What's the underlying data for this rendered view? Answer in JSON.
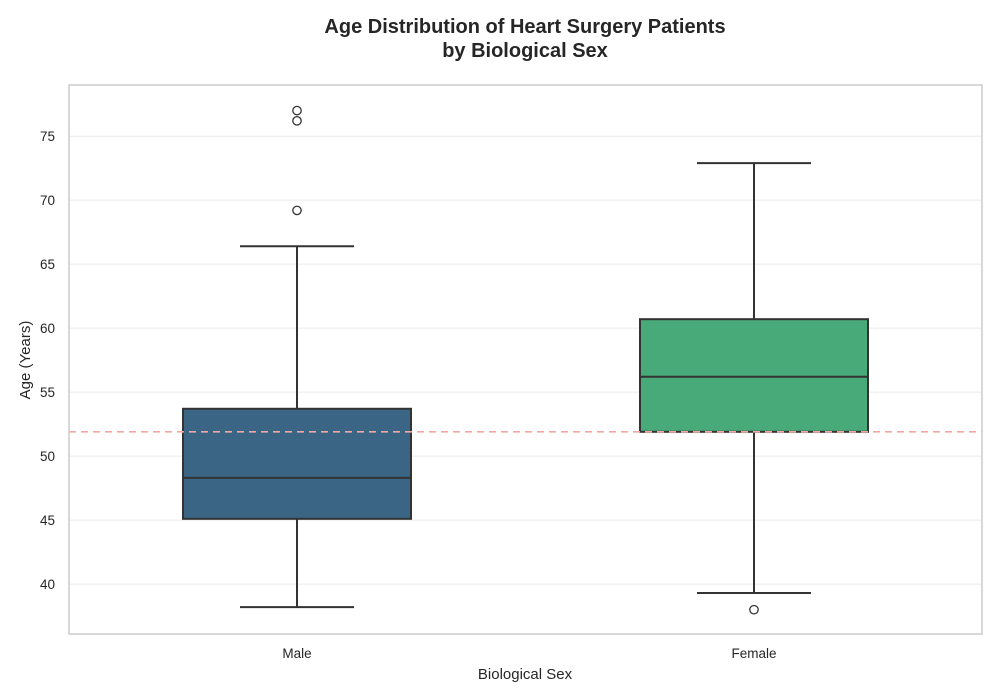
{
  "chart_data": {
    "type": "box",
    "title_lines": [
      "Age Distribution of Heart Surgery Patients",
      "by Biological Sex"
    ],
    "xlabel": "Biological Sex",
    "ylabel": "Age (Years)",
    "ylim": [
      36.1,
      79.0
    ],
    "yticks": [
      40,
      45,
      50,
      55,
      60,
      65,
      70,
      75
    ],
    "grid": true,
    "reference_line": {
      "value": 51.9,
      "color": "#f4a6a0",
      "style": "dashed"
    },
    "series": [
      {
        "category": "Male",
        "color": "#3a6585",
        "whisker_low": 38.2,
        "q1": 45.1,
        "median": 48.3,
        "q3": 53.7,
        "whisker_high": 66.4,
        "outliers": [
          69.2,
          76.2,
          77.0
        ]
      },
      {
        "category": "Female",
        "color": "#48a979",
        "whisker_low": 39.3,
        "q1": 51.9,
        "median": 56.2,
        "q3": 60.7,
        "whisker_high": 72.9,
        "outliers": [
          38.0
        ]
      }
    ]
  }
}
